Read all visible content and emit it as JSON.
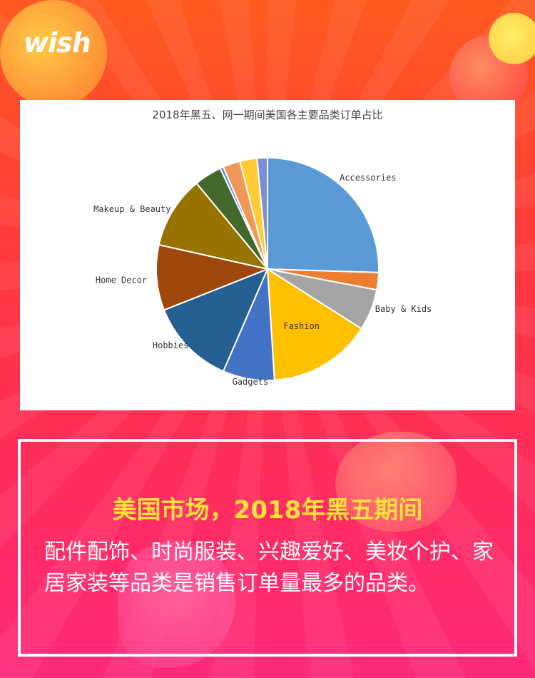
{
  "brand": {
    "logo_text": "wish"
  },
  "chart_data": {
    "type": "pie",
    "title": "2018年黑五、网一期间美国各主要品类订单占比",
    "slices": [
      {
        "label": "Accessories",
        "value": 25.5,
        "color": "#5b9bd5",
        "show_label": true
      },
      {
        "label": "",
        "value": 2.5,
        "color": "#ed7d31",
        "show_label": false
      },
      {
        "label": "Baby & Kids",
        "value": 6.0,
        "color": "#a5a5a5",
        "show_label": true
      },
      {
        "label": "Fashion",
        "value": 15.0,
        "color": "#ffc000",
        "show_label": true
      },
      {
        "label": "Gadgets",
        "value": 7.5,
        "color": "#4472c4",
        "show_label": true
      },
      {
        "label": "Hobbies",
        "value": 12.5,
        "color": "#255e91",
        "show_label": true
      },
      {
        "label": "Home Decor",
        "value": 9.5,
        "color": "#9e480e",
        "show_label": true
      },
      {
        "label": "Makeup & Beauty",
        "value": 10.5,
        "color": "#997300",
        "show_label": true
      },
      {
        "label": "",
        "value": 4.0,
        "color": "#43682b",
        "show_label": false
      },
      {
        "label": "",
        "value": 0.5,
        "color": "#698ed0",
        "show_label": false
      },
      {
        "label": "",
        "value": 2.5,
        "color": "#f1975a",
        "show_label": false
      },
      {
        "label": "",
        "value": 2.5,
        "color": "#ffcd33",
        "show_label": false
      },
      {
        "label": "",
        "value": 1.5,
        "color": "#7a8fd6",
        "show_label": false
      }
    ]
  },
  "info": {
    "headline": "美国市场，2018年黑五期间",
    "body": "配件配饰、时尚服装、兴趣爱好、美妆个护、家居家装等品类是销售订单量最多的品类。"
  }
}
